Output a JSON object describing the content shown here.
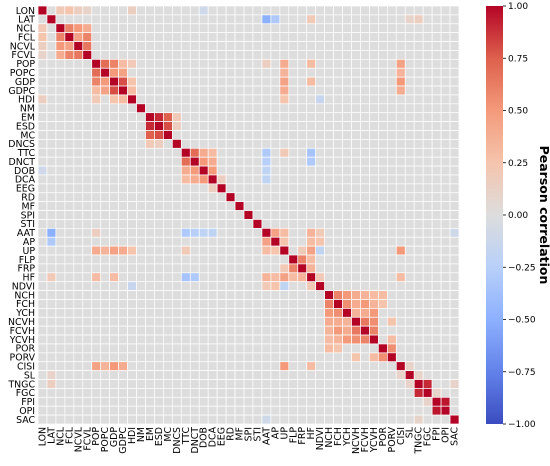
{
  "chart_data": {
    "type": "heatmap",
    "variables": [
      "LON",
      "LAT",
      "NCL",
      "FCL",
      "NCVL",
      "FCVL",
      "POP",
      "POPC",
      "GDP",
      "GDPC",
      "HDI",
      "NM",
      "EM",
      "ESD",
      "MC",
      "DNCS",
      "TTC",
      "DNCT",
      "DOB",
      "DCA",
      "EEG",
      "RD",
      "MF",
      "SPI",
      "STI",
      "AAT",
      "AP",
      "UP",
      "FLP",
      "FRP",
      "HF",
      "NDVI",
      "NCH",
      "FCH",
      "YCH",
      "NCVH",
      "FCVH",
      "YCVH",
      "POR",
      "PORV",
      "CISI",
      "SL",
      "TNGC",
      "FGC",
      "FPI",
      "OPI",
      "SAC"
    ],
    "values_note": "Symmetric Pearson correlation matrix, diagonal = 1. Off-diagonal entries are listed as [row, col, r] pairs (estimated from color); unlisted pairs are approximately 0.",
    "pairs": [
      [
        "LON",
        "NCL",
        0.2
      ],
      [
        "LON",
        "FCL",
        0.25
      ],
      [
        "LON",
        "NCVL",
        0.15
      ],
      [
        "LON",
        "FCVL",
        0.1
      ],
      [
        "LON",
        "HDI",
        0.15
      ],
      [
        "LON",
        "DOB",
        -0.1
      ],
      [
        "LAT",
        "AAT",
        -0.5
      ],
      [
        "LAT",
        "AP",
        -0.3
      ],
      [
        "LAT",
        "HF",
        0.2
      ],
      [
        "LAT",
        "TNGC",
        0.15
      ],
      [
        "LAT",
        "SL",
        0.1
      ],
      [
        "NCL",
        "FCL",
        0.6
      ],
      [
        "NCL",
        "NCVL",
        0.5
      ],
      [
        "NCL",
        "FCVL",
        0.4
      ],
      [
        "FCL",
        "NCVL",
        0.45
      ],
      [
        "FCL",
        "FCVL",
        0.6
      ],
      [
        "NCVL",
        "FCVL",
        0.65
      ],
      [
        "POP",
        "POPC",
        0.7
      ],
      [
        "POP",
        "GDP",
        0.6
      ],
      [
        "POP",
        "GDPC",
        0.3
      ],
      [
        "POP",
        "UP",
        0.4
      ],
      [
        "POP",
        "HF",
        0.3
      ],
      [
        "POP",
        "CISI",
        0.45
      ],
      [
        "POP",
        "HDI",
        0.2
      ],
      [
        "POP",
        "AAT",
        0.15
      ],
      [
        "POPC",
        "GDP",
        0.5
      ],
      [
        "POPC",
        "GDPC",
        0.45
      ],
      [
        "POPC",
        "UP",
        0.35
      ],
      [
        "POPC",
        "CISI",
        0.35
      ],
      [
        "GDP",
        "GDPC",
        0.8
      ],
      [
        "GDP",
        "UP",
        0.45
      ],
      [
        "GDP",
        "HF",
        0.3
      ],
      [
        "GDP",
        "CISI",
        0.5
      ],
      [
        "GDP",
        "HDI",
        0.25
      ],
      [
        "GDPC",
        "UP",
        0.4
      ],
      [
        "GDPC",
        "CISI",
        0.4
      ],
      [
        "GDPC",
        "HDI",
        0.3
      ],
      [
        "HDI",
        "UP",
        0.25
      ],
      [
        "HDI",
        "NDVI",
        -0.15
      ],
      [
        "EM",
        "ESD",
        0.9
      ],
      [
        "EM",
        "MC",
        0.75
      ],
      [
        "ESD",
        "MC",
        0.8
      ],
      [
        "EM",
        "DNCS",
        0.2
      ],
      [
        "ESD",
        "DNCS",
        0.15
      ],
      [
        "TTC",
        "DNCT",
        0.7
      ],
      [
        "TTC",
        "DOB",
        0.4
      ],
      [
        "TTC",
        "DCA",
        0.3
      ],
      [
        "TTC",
        "AAT",
        -0.3
      ],
      [
        "TTC",
        "HF",
        -0.35
      ],
      [
        "TTC",
        "UP",
        0.2
      ],
      [
        "DNCT",
        "DOB",
        0.5
      ],
      [
        "DNCT",
        "DCA",
        0.4
      ],
      [
        "DNCT",
        "AAT",
        -0.25
      ],
      [
        "DNCT",
        "HF",
        -0.3
      ],
      [
        "DOB",
        "DCA",
        0.5
      ],
      [
        "DOB",
        "AAT",
        -0.2
      ],
      [
        "DCA",
        "EEG",
        0.15
      ],
      [
        "DCA",
        "AAT",
        -0.2
      ],
      [
        "AAT",
        "AP",
        0.45
      ],
      [
        "AAT",
        "UP",
        0.3
      ],
      [
        "AAT",
        "HF",
        0.35
      ],
      [
        "AAT",
        "NDVI",
        0.2
      ],
      [
        "AAT",
        "SAC",
        -0.1
      ],
      [
        "AP",
        "UP",
        0.25
      ],
      [
        "AP",
        "HF",
        0.3
      ],
      [
        "AP",
        "NDVI",
        0.25
      ],
      [
        "UP",
        "HF",
        0.45
      ],
      [
        "UP",
        "FRP",
        0.2
      ],
      [
        "UP",
        "CISI",
        0.5
      ],
      [
        "UP",
        "NDVI",
        -0.2
      ],
      [
        "FLP",
        "FRP",
        0.6
      ],
      [
        "FLP",
        "HF",
        0.3
      ],
      [
        "FRP",
        "HF",
        0.35
      ],
      [
        "HF",
        "NDVI",
        0.2
      ],
      [
        "HF",
        "CISI",
        0.3
      ],
      [
        "NCH",
        "FCH",
        0.6
      ],
      [
        "NCH",
        "YCH",
        0.5
      ],
      [
        "NCH",
        "NCVH",
        0.4
      ],
      [
        "NCH",
        "FCVH",
        0.35
      ],
      [
        "NCH",
        "YCVH",
        0.3
      ],
      [
        "FCH",
        "YCH",
        0.55
      ],
      [
        "FCH",
        "NCVH",
        0.4
      ],
      [
        "FCH",
        "FCVH",
        0.5
      ],
      [
        "FCH",
        "YCVH",
        0.35
      ],
      [
        "YCH",
        "NCVH",
        0.35
      ],
      [
        "YCH",
        "FCVH",
        0.4
      ],
      [
        "YCH",
        "YCVH",
        0.5
      ],
      [
        "NCVH",
        "FCVH",
        0.65
      ],
      [
        "NCVH",
        "YCVH",
        0.55
      ],
      [
        "FCVH",
        "YCVH",
        0.6
      ],
      [
        "NCH",
        "POR",
        0.3
      ],
      [
        "FCH",
        "POR",
        0.25
      ],
      [
        "YCVH",
        "PORV",
        0.3
      ],
      [
        "NCVH",
        "PORV",
        0.25
      ],
      [
        "POR",
        "PORV",
        0.55
      ],
      [
        "CISI",
        "SL",
        0.1
      ],
      [
        "SL",
        "TNGC",
        0.1
      ],
      [
        "TNGC",
        "FGC",
        0.9
      ],
      [
        "FPI",
        "OPI",
        0.95
      ],
      [
        "FGC",
        "FPI",
        0.1
      ],
      [
        "TNGC",
        "SAC",
        0.1
      ]
    ],
    "colorbar": {
      "label": "Pearson correlation",
      "colormap": "coolwarm",
      "min": -1.0,
      "max": 1.0,
      "tick_labels": [
        "1.00",
        "0.75",
        "0.50",
        "0.25",
        "0.00",
        "−0.25",
        "−0.50",
        "−0.75",
        "−1.00"
      ]
    },
    "grid": true
  }
}
